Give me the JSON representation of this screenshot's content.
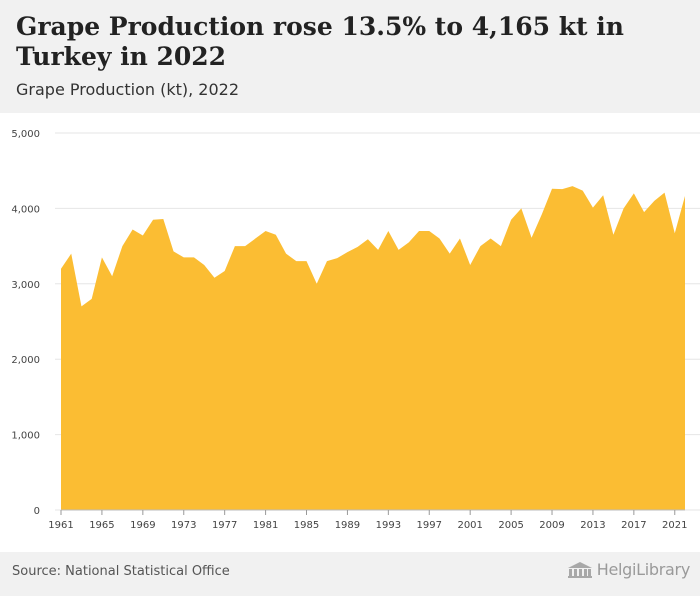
{
  "header": {
    "title": "Grape Production rose 13.5% to 4,165 kt in Turkey in 2022",
    "subtitle": "Grape Production (kt), 2022"
  },
  "footer": {
    "source": "Source: National Statistical Office",
    "brand": "HelgiLibrary",
    "brand_icon": "library-building-icon"
  },
  "colors": {
    "area_fill": "#fbbd33",
    "grid": "#e6e6e6",
    "axis_text": "#444444"
  },
  "chart_data": {
    "type": "area",
    "title": "Grape Production rose 13.5% to 4,165 kt in Turkey in 2022",
    "subtitle": "Grape Production (kt), 2022",
    "xlabel": "",
    "ylabel": "",
    "ylim": [
      0,
      5000
    ],
    "xlim": [
      1961,
      2022
    ],
    "yticks": [
      0,
      1000,
      2000,
      3000,
      4000,
      5000
    ],
    "ytick_labels": [
      "0",
      "1,000",
      "2,000",
      "3,000",
      "4,000",
      "5,000"
    ],
    "xticks": [
      1961,
      1965,
      1969,
      1973,
      1977,
      1981,
      1985,
      1989,
      1993,
      1997,
      2001,
      2005,
      2009,
      2013,
      2017,
      2021
    ],
    "grid": true,
    "legend": "none",
    "x": [
      1961,
      1962,
      1963,
      1964,
      1965,
      1966,
      1967,
      1968,
      1969,
      1970,
      1971,
      1972,
      1973,
      1974,
      1975,
      1976,
      1977,
      1978,
      1979,
      1980,
      1981,
      1982,
      1983,
      1984,
      1985,
      1986,
      1987,
      1988,
      1989,
      1990,
      1991,
      1992,
      1993,
      1994,
      1995,
      1996,
      1997,
      1998,
      1999,
      2000,
      2001,
      2002,
      2003,
      2004,
      2005,
      2006,
      2007,
      2008,
      2009,
      2010,
      2011,
      2012,
      2013,
      2014,
      2015,
      2016,
      2017,
      2018,
      2019,
      2020,
      2021,
      2022
    ],
    "series": [
      {
        "values": [
          3200,
          3400,
          2700,
          2800,
          3350,
          3100,
          3500,
          3720,
          3640,
          3850,
          3860,
          3430,
          3350,
          3350,
          3250,
          3080,
          3170,
          3500,
          3500,
          3600,
          3700,
          3650,
          3400,
          3300,
          3300,
          3000,
          3300,
          3340,
          3420,
          3490,
          3590,
          3450,
          3700,
          3450,
          3550,
          3700,
          3700,
          3600,
          3400,
          3600,
          3250,
          3500,
          3600,
          3500,
          3850,
          4000,
          3610,
          3920,
          4260,
          4255,
          4295,
          4235,
          4010,
          4175,
          3650,
          4000,
          4200,
          3950,
          4100,
          4210,
          3670,
          4165
        ]
      }
    ]
  }
}
